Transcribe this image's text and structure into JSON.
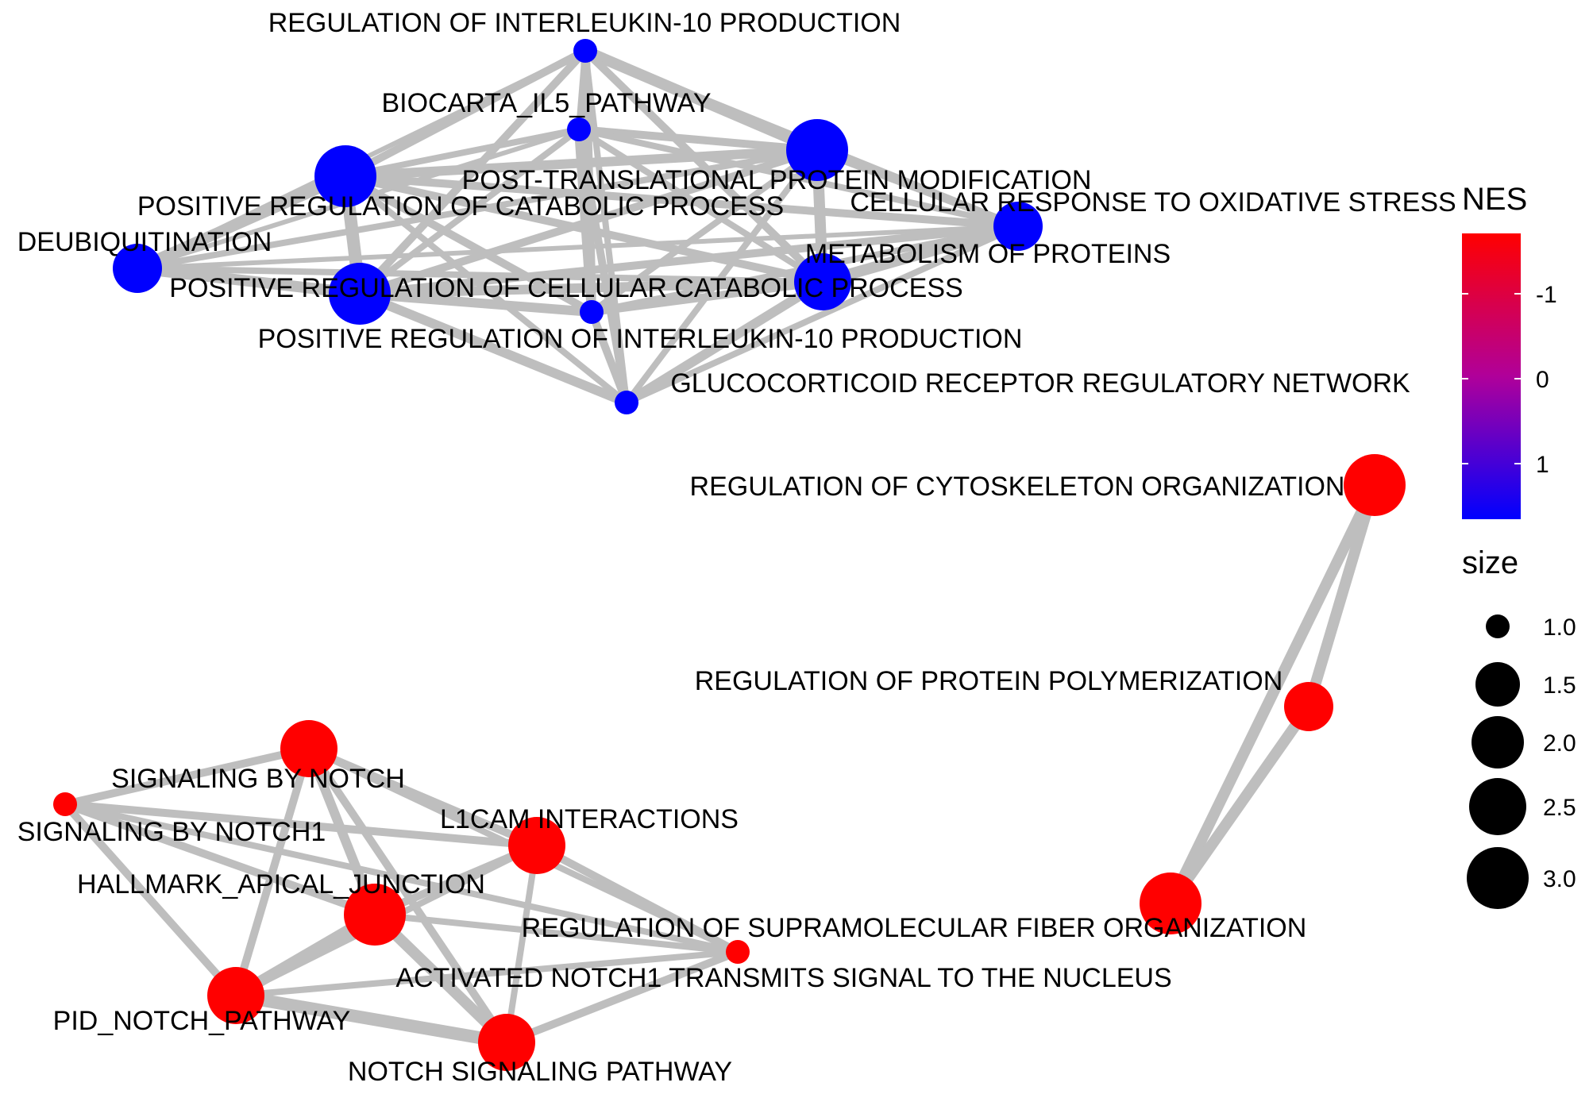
{
  "colors": {
    "edge": "#bebebe",
    "high": "#ff0000",
    "low": "#0000ff",
    "node_text": "#000000",
    "background": "#ffffff"
  },
  "legend": {
    "color_title": "NES",
    "color_ticks": [
      "-1",
      "0",
      "1"
    ],
    "size_title": "size",
    "size_ticks": [
      "1.0",
      "1.5",
      "2.0",
      "2.5",
      "3.0"
    ]
  },
  "nodes": [
    {
      "id": "il10",
      "label": "REGULATION OF INTERLEUKIN-10 PRODUCTION",
      "color": "blue",
      "size": 1.0
    },
    {
      "id": "il5",
      "label": "BIOCARTA_IL5_PATHWAY",
      "color": "blue",
      "size": 1.0
    },
    {
      "id": "ptm",
      "label": "POST-TRANSLATIONAL PROTEIN MODIFICATION",
      "color": "blue",
      "size": 3.0
    },
    {
      "id": "poscat",
      "label": "POSITIVE REGULATION OF CATABOLIC PROCESS",
      "color": "blue",
      "size": 3.0
    },
    {
      "id": "oxstress",
      "label": "CELLULAR RESPONSE TO OXIDATIVE STRESS",
      "color": "blue",
      "size": 2.0
    },
    {
      "id": "deubiq",
      "label": "DEUBIQUITINATION",
      "color": "blue",
      "size": 2.0
    },
    {
      "id": "metprot",
      "label": "METABOLISM OF PROTEINS",
      "color": "blue",
      "size": 2.5
    },
    {
      "id": "poscellcat",
      "label": "POSITIVE REGULATION OF CELLULAR CATABOLIC PROCESS",
      "color": "blue",
      "size": 3.0
    },
    {
      "id": "posil10",
      "label": "POSITIVE REGULATION OF INTERLEUKIN-10 PRODUCTION",
      "color": "blue",
      "size": 1.0
    },
    {
      "id": "gcr",
      "label": "GLUCOCORTICOID RECEPTOR REGULATORY NETWORK",
      "color": "blue",
      "size": 1.0
    },
    {
      "id": "cytoskel",
      "label": "REGULATION OF CYTOSKELETON ORGANIZATION",
      "color": "red",
      "size": 3.0
    },
    {
      "id": "protpoly",
      "label": "REGULATION OF PROTEIN POLYMERIZATION",
      "color": "red",
      "size": 2.0
    },
    {
      "id": "supramol",
      "label": "REGULATION OF SUPRAMOLECULAR FIBER ORGANIZATION",
      "color": "red",
      "size": 3.0
    },
    {
      "id": "notch",
      "label": "SIGNALING BY NOTCH",
      "color": "red",
      "size": 2.5
    },
    {
      "id": "notch1",
      "label": "SIGNALING BY NOTCH1",
      "color": "red",
      "size": 1.0
    },
    {
      "id": "l1cam",
      "label": "L1CAM INTERACTIONS",
      "color": "red",
      "size": 2.5
    },
    {
      "id": "apical",
      "label": "HALLMARK_APICAL_JUNCTION",
      "color": "red",
      "size": 3.0
    },
    {
      "id": "activated",
      "label": "ACTIVATED NOTCH1 TRANSMITS SIGNAL TO THE NUCLEUS",
      "color": "red",
      "size": 1.0
    },
    {
      "id": "pidnotch",
      "label": "PID_NOTCH_PATHWAY",
      "color": "red",
      "size": 2.5
    },
    {
      "id": "notchsig",
      "label": "NOTCH SIGNALING PATHWAY",
      "color": "red",
      "size": 2.5
    }
  ]
}
